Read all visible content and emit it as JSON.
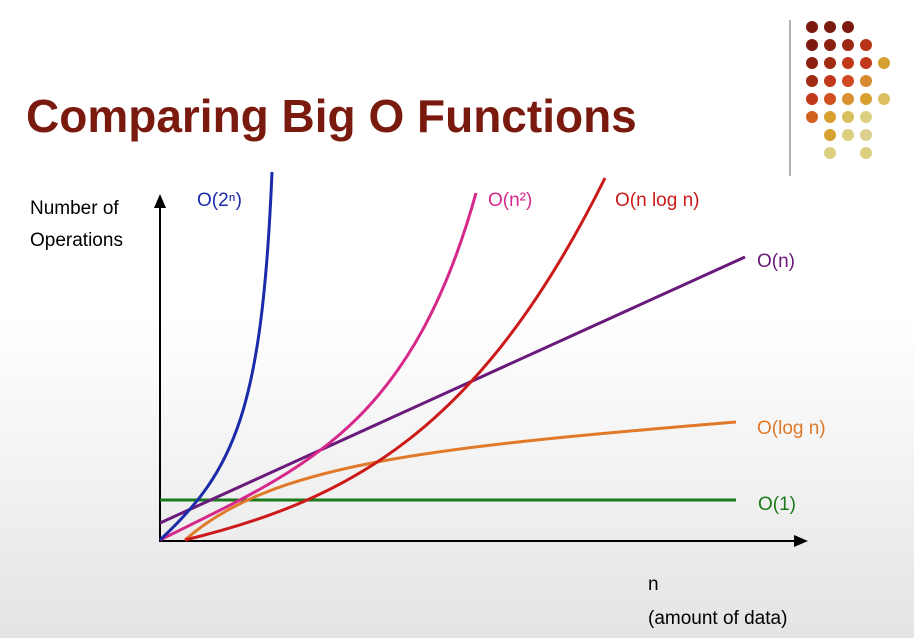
{
  "title": "Comparing Big O Functions",
  "y_axis_label": [
    "Number of",
    "Operations"
  ],
  "x_axis_label": [
    "n",
    "(amount of data)"
  ],
  "curves": [
    {
      "label": "O(2ⁿ)"
    },
    {
      "label": "O(n²)"
    },
    {
      "label": "O(n log n)"
    },
    {
      "label": "O(n)"
    },
    {
      "label": "O(log n)"
    },
    {
      "label": "O(1)"
    }
  ]
}
